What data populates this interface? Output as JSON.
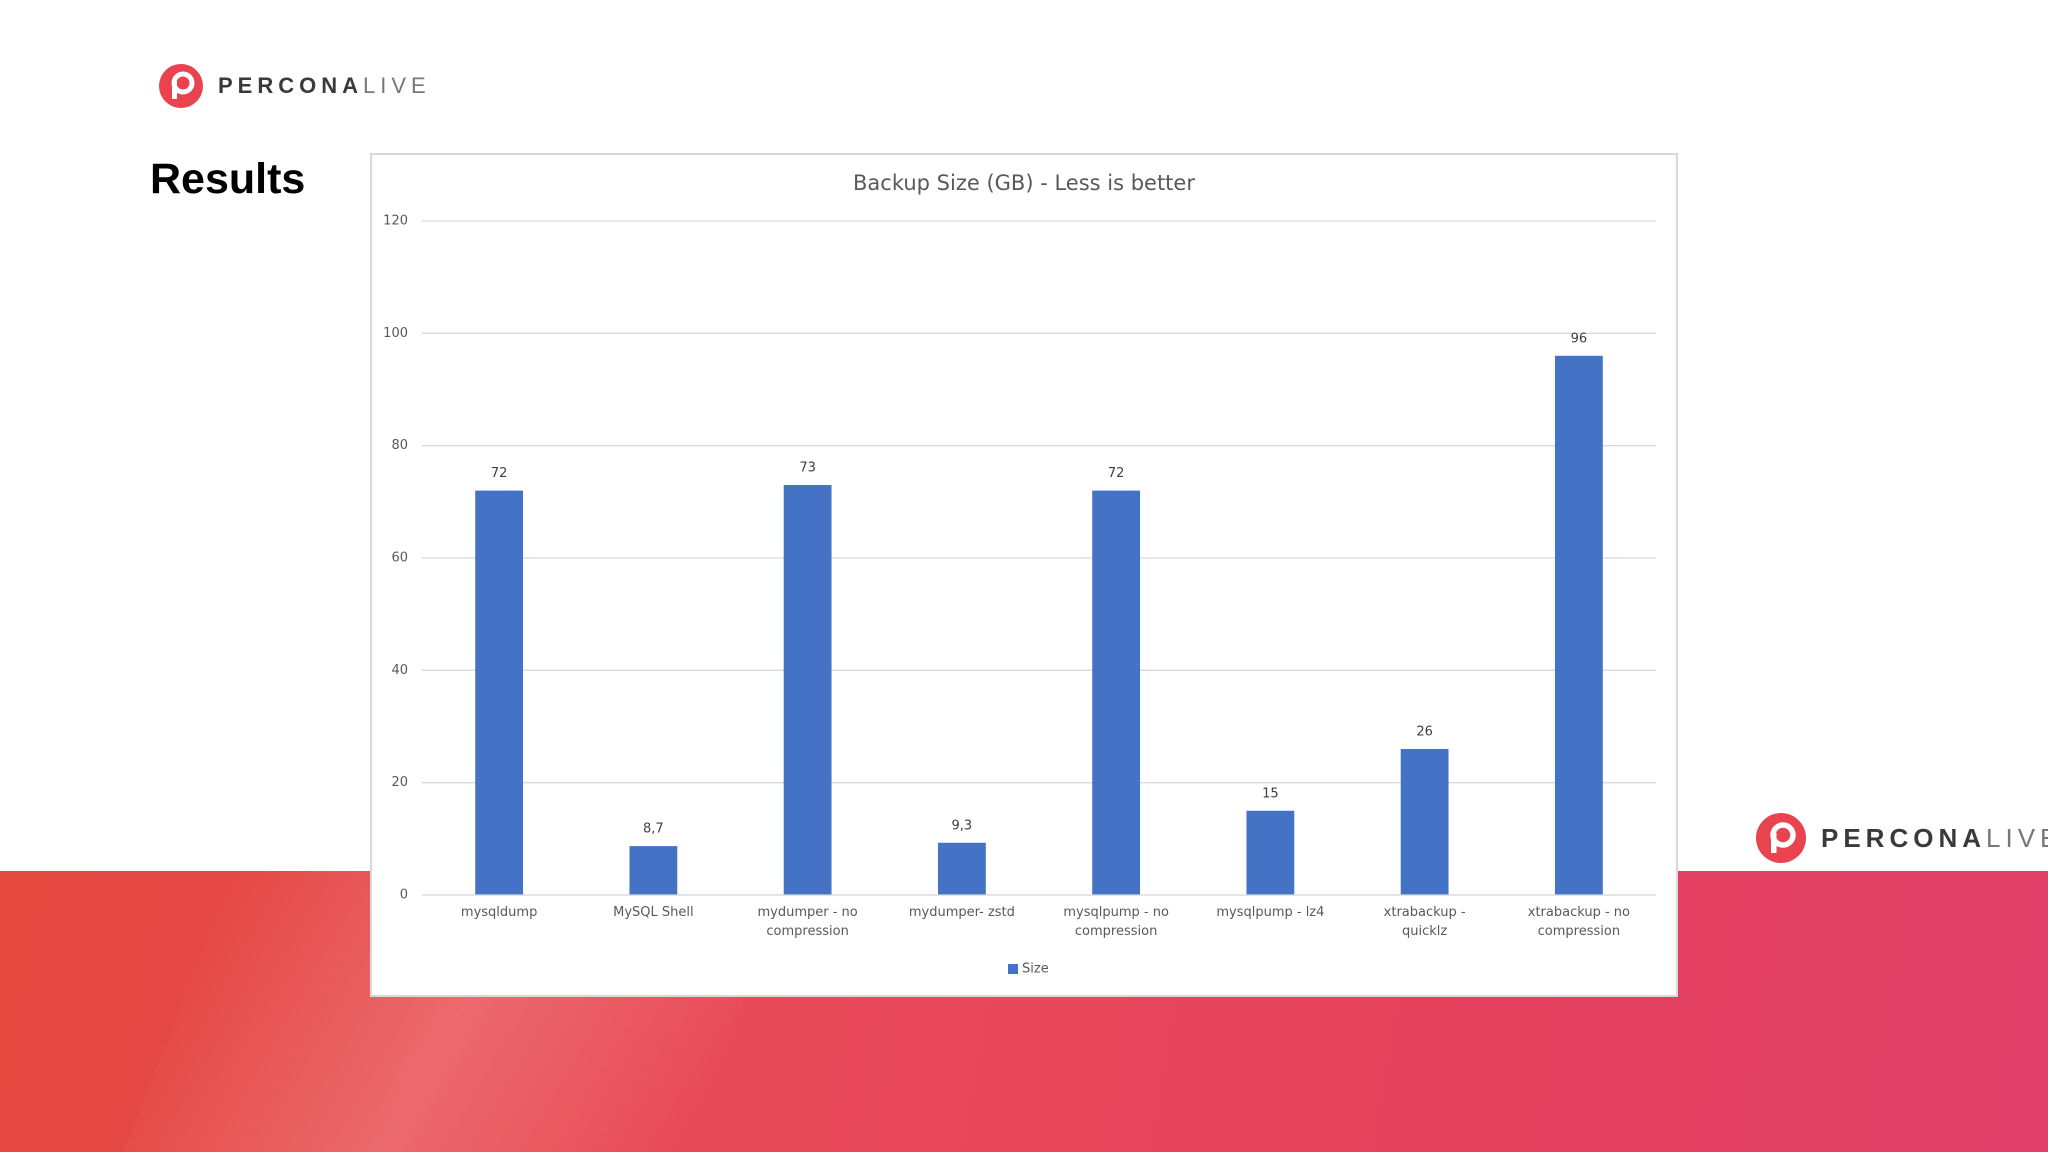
{
  "slide": {
    "title": "Results",
    "logo": {
      "brand": "PERCONA",
      "event": "LIVE"
    }
  },
  "chart_data": {
    "type": "bar",
    "title": "Backup Size (GB) - Less is better",
    "categories": [
      "mysqldump",
      "MySQL Shell",
      "mydumper - no compression",
      "mydumper- zstd",
      "mysqlpump - no compression",
      "mysqlpump - lz4",
      "xtrabackup - quicklz",
      "xtrabackup - no compression"
    ],
    "series": [
      {
        "name": "Size",
        "color": "#4472c4",
        "values": [
          72,
          8.7,
          73,
          9.3,
          72,
          15,
          26,
          96
        ],
        "value_labels": [
          "72",
          "8,7",
          "73",
          "9,3",
          "72",
          "15",
          "26",
          "96"
        ]
      }
    ],
    "ylim": [
      0,
      120
    ],
    "yticks": [
      0,
      20,
      40,
      60,
      80,
      100,
      120
    ],
    "grid": true,
    "legend": "bottom"
  }
}
